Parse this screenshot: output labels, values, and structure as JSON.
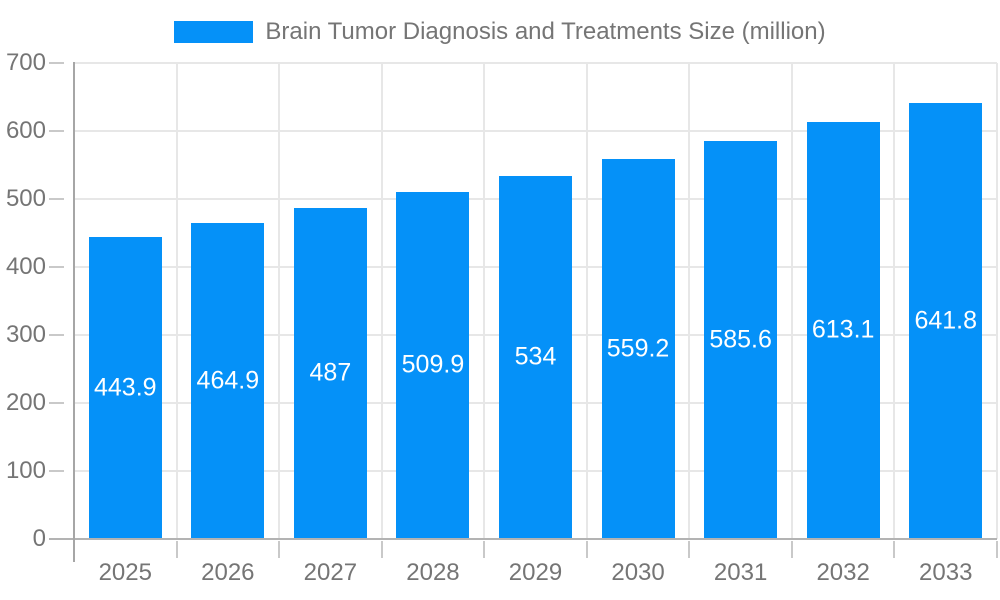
{
  "chart_data": {
    "type": "bar",
    "title": "Brain Tumor Diagnosis and Treatments Size (million)",
    "categories": [
      "2025",
      "2026",
      "2027",
      "2028",
      "2029",
      "2030",
      "2031",
      "2032",
      "2033"
    ],
    "values": [
      443.9,
      464.9,
      487,
      509.9,
      534,
      559.2,
      585.6,
      613.1,
      641.8
    ],
    "value_labels": [
      "443.9",
      "464.9",
      "487",
      "509.9",
      "534",
      "559.2",
      "585.6",
      "613.1",
      "641.8"
    ],
    "xlabel": "",
    "ylabel": "",
    "ylim": [
      0,
      700
    ],
    "ytick_step": 100,
    "ytick_labels": [
      "0",
      "100",
      "200",
      "300",
      "400",
      "500",
      "600",
      "700"
    ],
    "grid": true,
    "legend_position": "top",
    "value_label_position": "inside-center",
    "colors": {
      "bar": "#0591f8",
      "axis_text": "#757575",
      "value_text": "#ffffff",
      "grid_line": "#e7e7e7",
      "axis_line": "#a6a6a6",
      "base_line": "#b3b3b3",
      "tick": "#c9c9c9"
    }
  }
}
